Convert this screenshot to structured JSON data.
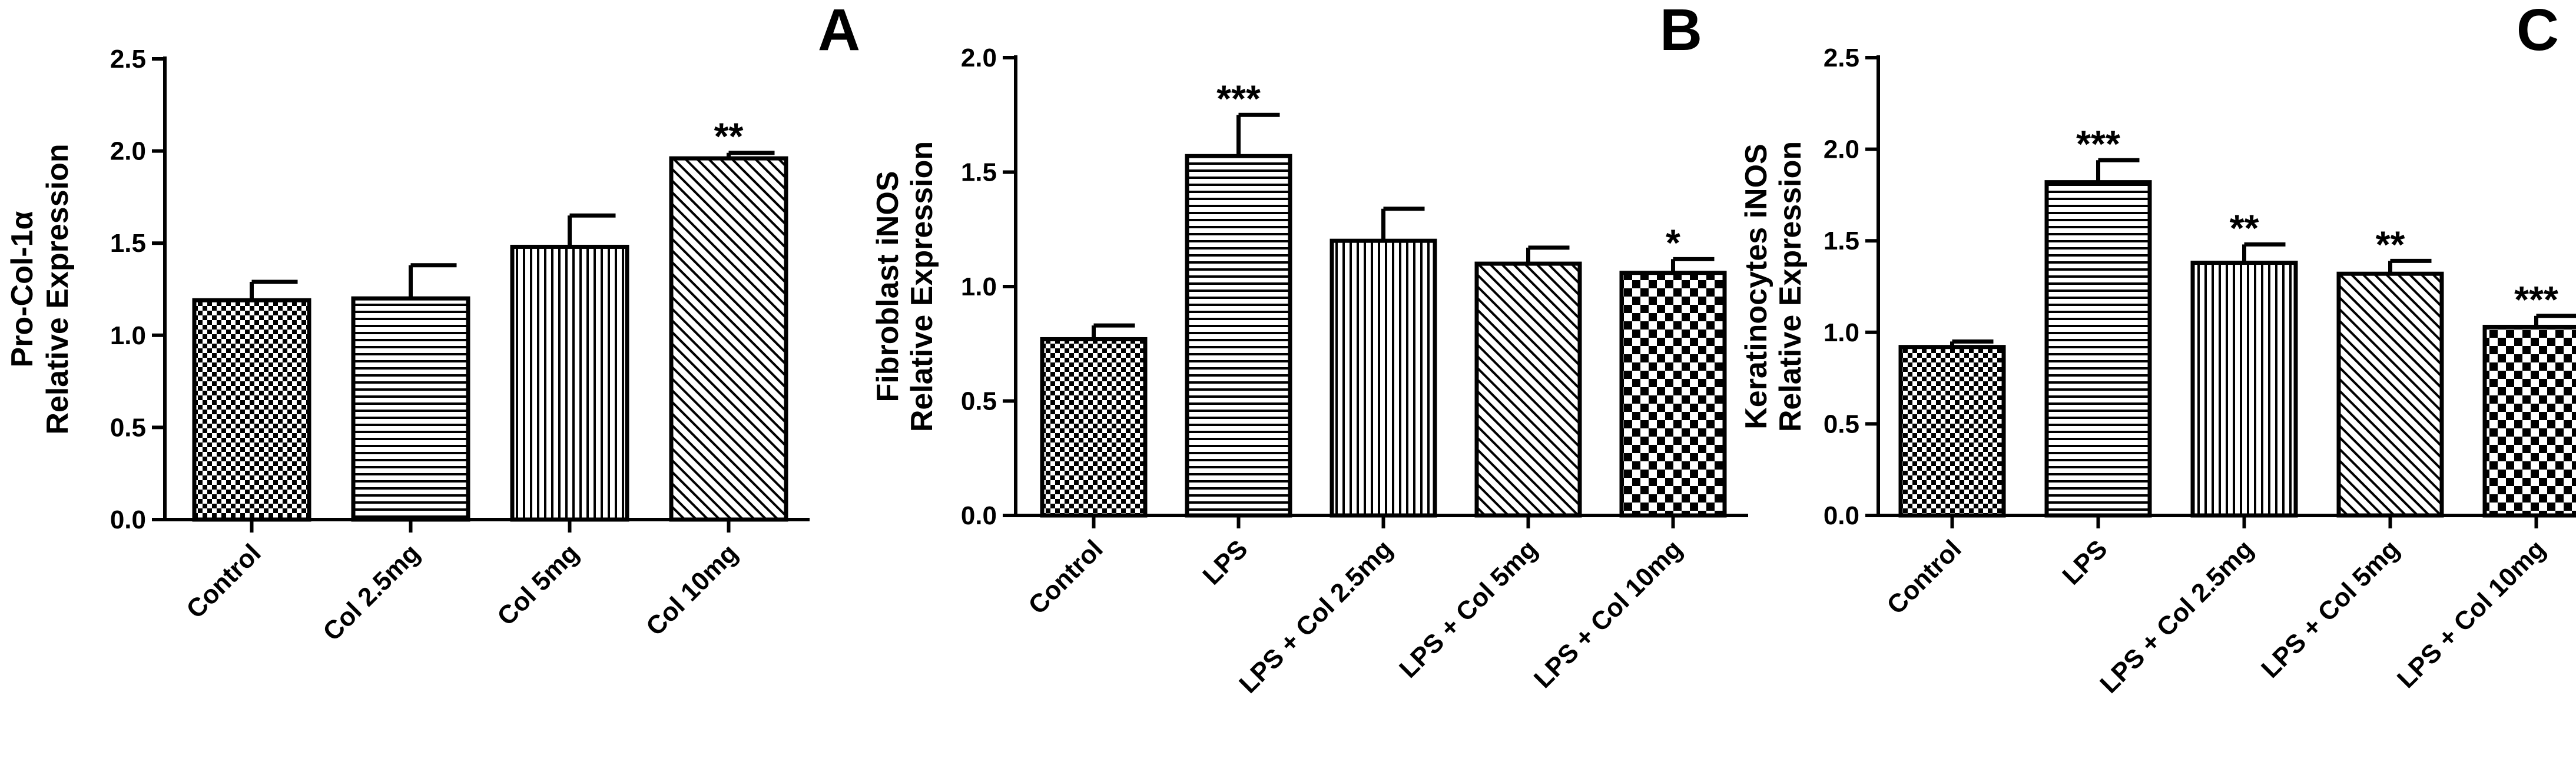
{
  "chart_data": [
    {
      "type": "bar",
      "panel": "A",
      "ylabel": [
        "Pro-Col-1α",
        "Relative Expression"
      ],
      "ylim": [
        0,
        2.5
      ],
      "yticks": [
        "0.0",
        "0.5",
        "1.0",
        "1.5",
        "2.0",
        "2.5"
      ],
      "categories": [
        "Control",
        "Col 2.5mg",
        "Col 5mg",
        "Col 10mg"
      ],
      "values": [
        1.19,
        1.2,
        1.48,
        1.96
      ],
      "errors": [
        0.1,
        0.18,
        0.17,
        0.03
      ],
      "significance": [
        "",
        "",
        "",
        "**"
      ],
      "patterns": [
        "checker-fine",
        "horizontal",
        "vertical",
        "diagonal"
      ]
    },
    {
      "type": "bar",
      "panel": "B",
      "ylabel": [
        "Fibroblast iNOS",
        "Relative Expression"
      ],
      "ylim": [
        0,
        2.0
      ],
      "yticks": [
        "0.0",
        "0.5",
        "1.0",
        "1.5",
        "2.0"
      ],
      "categories": [
        "Control",
        "LPS",
        "LPS + Col 2.5mg",
        "LPS + Col 5mg",
        "LPS + Col 10mg"
      ],
      "values": [
        0.77,
        1.57,
        1.2,
        1.1,
        1.06
      ],
      "errors": [
        0.06,
        0.18,
        0.14,
        0.07,
        0.06
      ],
      "significance": [
        "",
        "***",
        "",
        "",
        "*"
      ],
      "patterns": [
        "checker-fine",
        "horizontal",
        "vertical",
        "diagonal",
        "checker-coarse"
      ]
    },
    {
      "type": "bar",
      "panel": "C",
      "ylabel": [
        "Keratinocytes iNOS",
        "Relative Expression"
      ],
      "ylim": [
        0,
        2.5
      ],
      "yticks": [
        "0.0",
        "0.5",
        "1.0",
        "1.5",
        "2.0",
        "2.5"
      ],
      "categories": [
        "Control",
        "LPS",
        "LPS + Col 2.5mg",
        "LPS + Col 5mg",
        "LPS + Col 10mg"
      ],
      "values": [
        0.92,
        1.82,
        1.38,
        1.32,
        1.03
      ],
      "errors": [
        0.03,
        0.12,
        0.1,
        0.07,
        0.06
      ],
      "significance": [
        "",
        "***",
        "**",
        "**",
        "***"
      ],
      "patterns": [
        "checker-fine",
        "horizontal",
        "vertical",
        "diagonal",
        "checker-coarse"
      ]
    }
  ]
}
